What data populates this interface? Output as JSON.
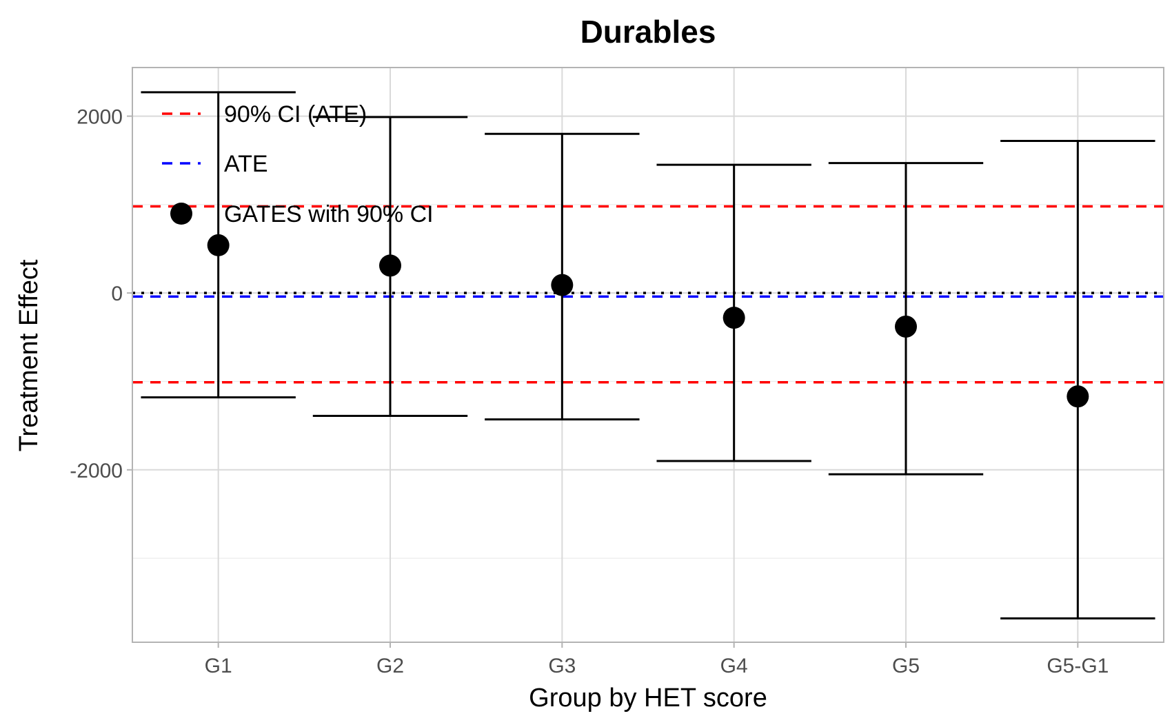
{
  "chart_data": {
    "type": "scatter",
    "title": "Durables",
    "xlabel": "Group by HET score",
    "ylabel": "Treatment Effect",
    "categories": [
      "G1",
      "G2",
      "G3",
      "G4",
      "G5",
      "G5-G1"
    ],
    "ylim": [
      -3950,
      2550
    ],
    "yticks": [
      -2000,
      0,
      2000
    ],
    "y_tick_labels": [
      "-2000",
      "0",
      "2000"
    ],
    "grid": true,
    "legend_position": "top-left",
    "series": [
      {
        "name": "GATES with 90% CI",
        "values": [
          540,
          310,
          90,
          -280,
          -380,
          -1170
        ],
        "lower": [
          -1180,
          -1390,
          -1430,
          -1900,
          -2050,
          -3680
        ],
        "upper": [
          2270,
          1990,
          1800,
          1450,
          1470,
          1720
        ],
        "color": "#000000"
      }
    ],
    "reference_lines": [
      {
        "name": "90% CI (ATE)",
        "y": [
          980,
          -1010
        ],
        "color": "#ff0000",
        "style": "dashed"
      },
      {
        "name": "ATE",
        "y": [
          -40
        ],
        "color": "#0000ff",
        "style": "dashed"
      },
      {
        "y": [
          0
        ],
        "color": "#000000",
        "style": "dotted"
      }
    ],
    "legend": [
      {
        "label": "90% CI (ATE)",
        "kind": "dashed-line",
        "color": "#ff0000"
      },
      {
        "label": "ATE",
        "kind": "dashed-line",
        "color": "#0000ff"
      },
      {
        "label": "GATES with 90% CI",
        "kind": "point",
        "color": "#000000"
      }
    ]
  }
}
